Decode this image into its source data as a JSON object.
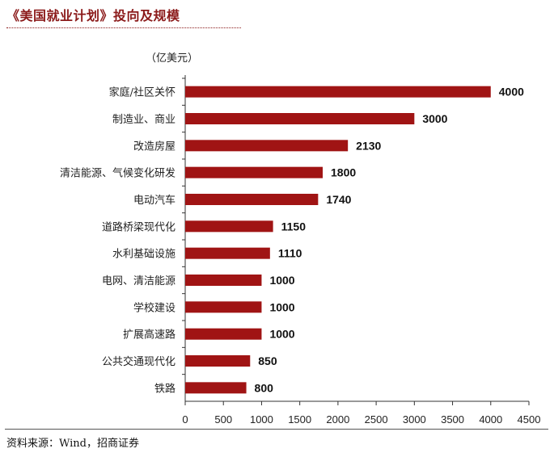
{
  "header": {
    "title": "《美国就业计划》投向及规模"
  },
  "footer": {
    "source": "资料来源：Wind，招商证券"
  },
  "chart_data": {
    "type": "bar",
    "orientation": "horizontal",
    "unit": "（亿美元）",
    "categories": [
      "家庭/社区关怀",
      "制造业、商业",
      "改造房屋",
      "清洁能源、气候变化研发",
      "电动汽车",
      "道路桥梁现代化",
      "水利基础设施",
      "电网、清洁能源",
      "学校建设",
      "扩展高速路",
      "公共交通现代化",
      "铁路"
    ],
    "values": [
      4000,
      3000,
      2130,
      1800,
      1740,
      1150,
      1110,
      1000,
      1000,
      1000,
      850,
      800
    ],
    "xlim": [
      0,
      4500
    ],
    "xticks": [
      0,
      500,
      1000,
      1500,
      2000,
      2500,
      3000,
      3500,
      4000,
      4500
    ],
    "bar_color": "#a01414",
    "data_labels": true,
    "grid": false,
    "legend": "none"
  }
}
